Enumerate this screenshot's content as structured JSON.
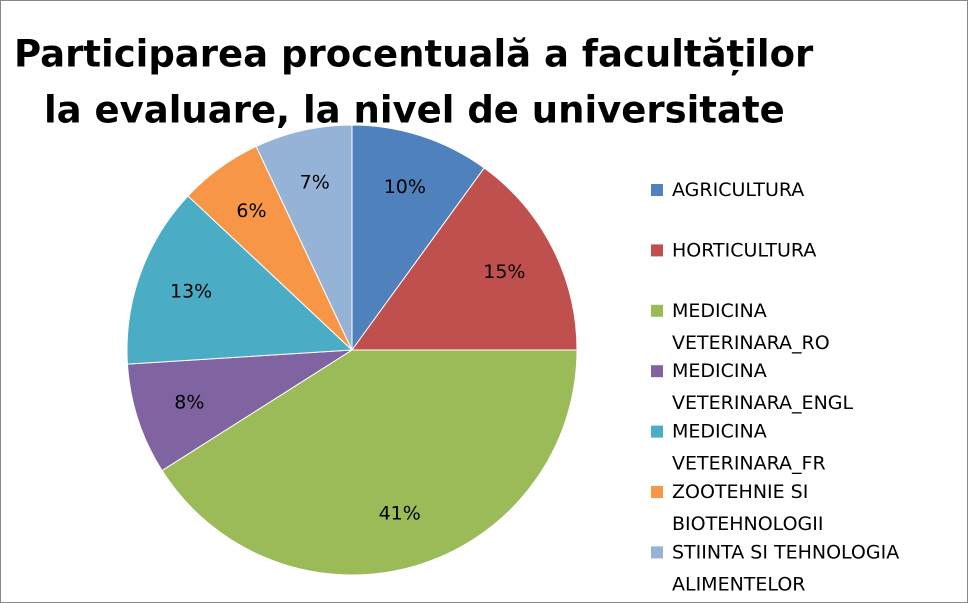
{
  "chart_data": {
    "type": "pie",
    "title": [
      "Participarea procentuală a facultăților",
      "la evaluare, la nivel de universitate"
    ],
    "categories": [
      "AGRICULTURA",
      "HORTICULTURA",
      "MEDICINA VETERINARA_RO",
      "MEDICINA VETERINARA_ENGL",
      "MEDICINA VETERINARA_FR",
      "ZOOTEHNIE SI BIOTEHNOLOGII",
      "STIINTA SI TEHNOLOGIA ALIMENTELOR"
    ],
    "values": [
      10,
      15,
      41,
      8,
      13,
      6,
      7
    ],
    "value_labels": [
      "10%",
      "15%",
      "41%",
      "8%",
      "13%",
      "6%",
      "7%"
    ],
    "colors": [
      "#4F81BD",
      "#C0504D",
      "#9BBB59",
      "#8064A2",
      "#4BACC6",
      "#F79646",
      "#95B3D7"
    ],
    "legend": "right"
  }
}
